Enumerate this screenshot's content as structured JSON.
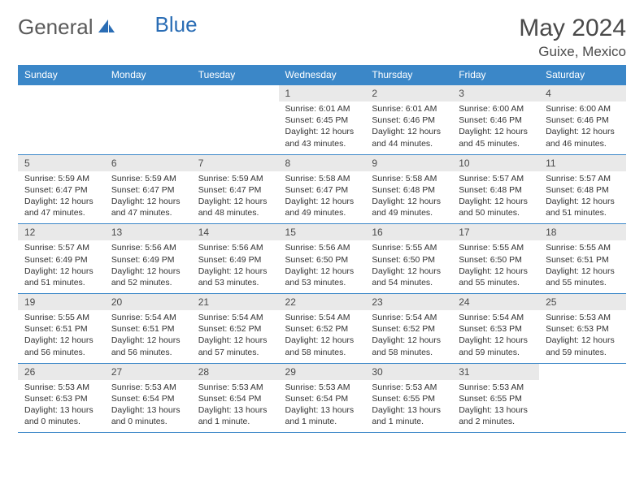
{
  "logo": {
    "part1": "General",
    "part2": "Blue"
  },
  "title": "May 2024",
  "location": "Guixe, Mexico",
  "colors": {
    "header_bg": "#3b87c8",
    "header_text": "#ffffff",
    "daynum_bg": "#e9e9e9",
    "border": "#3b87c8",
    "text": "#333333",
    "title_text": "#4a4a4a",
    "logo_gray": "#5a5a5a",
    "logo_blue": "#2a6db5"
  },
  "weekdays": [
    "Sunday",
    "Monday",
    "Tuesday",
    "Wednesday",
    "Thursday",
    "Friday",
    "Saturday"
  ],
  "weeks": [
    {
      "days": [
        {
          "n": "",
          "empty": true
        },
        {
          "n": "",
          "empty": true
        },
        {
          "n": "",
          "empty": true
        },
        {
          "n": "1",
          "sunrise": "6:01 AM",
          "sunset": "6:45 PM",
          "dl": "12 hours and 43 minutes."
        },
        {
          "n": "2",
          "sunrise": "6:01 AM",
          "sunset": "6:46 PM",
          "dl": "12 hours and 44 minutes."
        },
        {
          "n": "3",
          "sunrise": "6:00 AM",
          "sunset": "6:46 PM",
          "dl": "12 hours and 45 minutes."
        },
        {
          "n": "4",
          "sunrise": "6:00 AM",
          "sunset": "6:46 PM",
          "dl": "12 hours and 46 minutes."
        }
      ]
    },
    {
      "days": [
        {
          "n": "5",
          "sunrise": "5:59 AM",
          "sunset": "6:47 PM",
          "dl": "12 hours and 47 minutes."
        },
        {
          "n": "6",
          "sunrise": "5:59 AM",
          "sunset": "6:47 PM",
          "dl": "12 hours and 47 minutes."
        },
        {
          "n": "7",
          "sunrise": "5:59 AM",
          "sunset": "6:47 PM",
          "dl": "12 hours and 48 minutes."
        },
        {
          "n": "8",
          "sunrise": "5:58 AM",
          "sunset": "6:47 PM",
          "dl": "12 hours and 49 minutes."
        },
        {
          "n": "9",
          "sunrise": "5:58 AM",
          "sunset": "6:48 PM",
          "dl": "12 hours and 49 minutes."
        },
        {
          "n": "10",
          "sunrise": "5:57 AM",
          "sunset": "6:48 PM",
          "dl": "12 hours and 50 minutes."
        },
        {
          "n": "11",
          "sunrise": "5:57 AM",
          "sunset": "6:48 PM",
          "dl": "12 hours and 51 minutes."
        }
      ]
    },
    {
      "days": [
        {
          "n": "12",
          "sunrise": "5:57 AM",
          "sunset": "6:49 PM",
          "dl": "12 hours and 51 minutes."
        },
        {
          "n": "13",
          "sunrise": "5:56 AM",
          "sunset": "6:49 PM",
          "dl": "12 hours and 52 minutes."
        },
        {
          "n": "14",
          "sunrise": "5:56 AM",
          "sunset": "6:49 PM",
          "dl": "12 hours and 53 minutes."
        },
        {
          "n": "15",
          "sunrise": "5:56 AM",
          "sunset": "6:50 PM",
          "dl": "12 hours and 53 minutes."
        },
        {
          "n": "16",
          "sunrise": "5:55 AM",
          "sunset": "6:50 PM",
          "dl": "12 hours and 54 minutes."
        },
        {
          "n": "17",
          "sunrise": "5:55 AM",
          "sunset": "6:50 PM",
          "dl": "12 hours and 55 minutes."
        },
        {
          "n": "18",
          "sunrise": "5:55 AM",
          "sunset": "6:51 PM",
          "dl": "12 hours and 55 minutes."
        }
      ]
    },
    {
      "days": [
        {
          "n": "19",
          "sunrise": "5:55 AM",
          "sunset": "6:51 PM",
          "dl": "12 hours and 56 minutes."
        },
        {
          "n": "20",
          "sunrise": "5:54 AM",
          "sunset": "6:51 PM",
          "dl": "12 hours and 56 minutes."
        },
        {
          "n": "21",
          "sunrise": "5:54 AM",
          "sunset": "6:52 PM",
          "dl": "12 hours and 57 minutes."
        },
        {
          "n": "22",
          "sunrise": "5:54 AM",
          "sunset": "6:52 PM",
          "dl": "12 hours and 58 minutes."
        },
        {
          "n": "23",
          "sunrise": "5:54 AM",
          "sunset": "6:52 PM",
          "dl": "12 hours and 58 minutes."
        },
        {
          "n": "24",
          "sunrise": "5:54 AM",
          "sunset": "6:53 PM",
          "dl": "12 hours and 59 minutes."
        },
        {
          "n": "25",
          "sunrise": "5:53 AM",
          "sunset": "6:53 PM",
          "dl": "12 hours and 59 minutes."
        }
      ]
    },
    {
      "days": [
        {
          "n": "26",
          "sunrise": "5:53 AM",
          "sunset": "6:53 PM",
          "dl": "13 hours and 0 minutes."
        },
        {
          "n": "27",
          "sunrise": "5:53 AM",
          "sunset": "6:54 PM",
          "dl": "13 hours and 0 minutes."
        },
        {
          "n": "28",
          "sunrise": "5:53 AM",
          "sunset": "6:54 PM",
          "dl": "13 hours and 1 minute."
        },
        {
          "n": "29",
          "sunrise": "5:53 AM",
          "sunset": "6:54 PM",
          "dl": "13 hours and 1 minute."
        },
        {
          "n": "30",
          "sunrise": "5:53 AM",
          "sunset": "6:55 PM",
          "dl": "13 hours and 1 minute."
        },
        {
          "n": "31",
          "sunrise": "5:53 AM",
          "sunset": "6:55 PM",
          "dl": "13 hours and 2 minutes."
        },
        {
          "n": "",
          "empty": true
        }
      ]
    }
  ]
}
